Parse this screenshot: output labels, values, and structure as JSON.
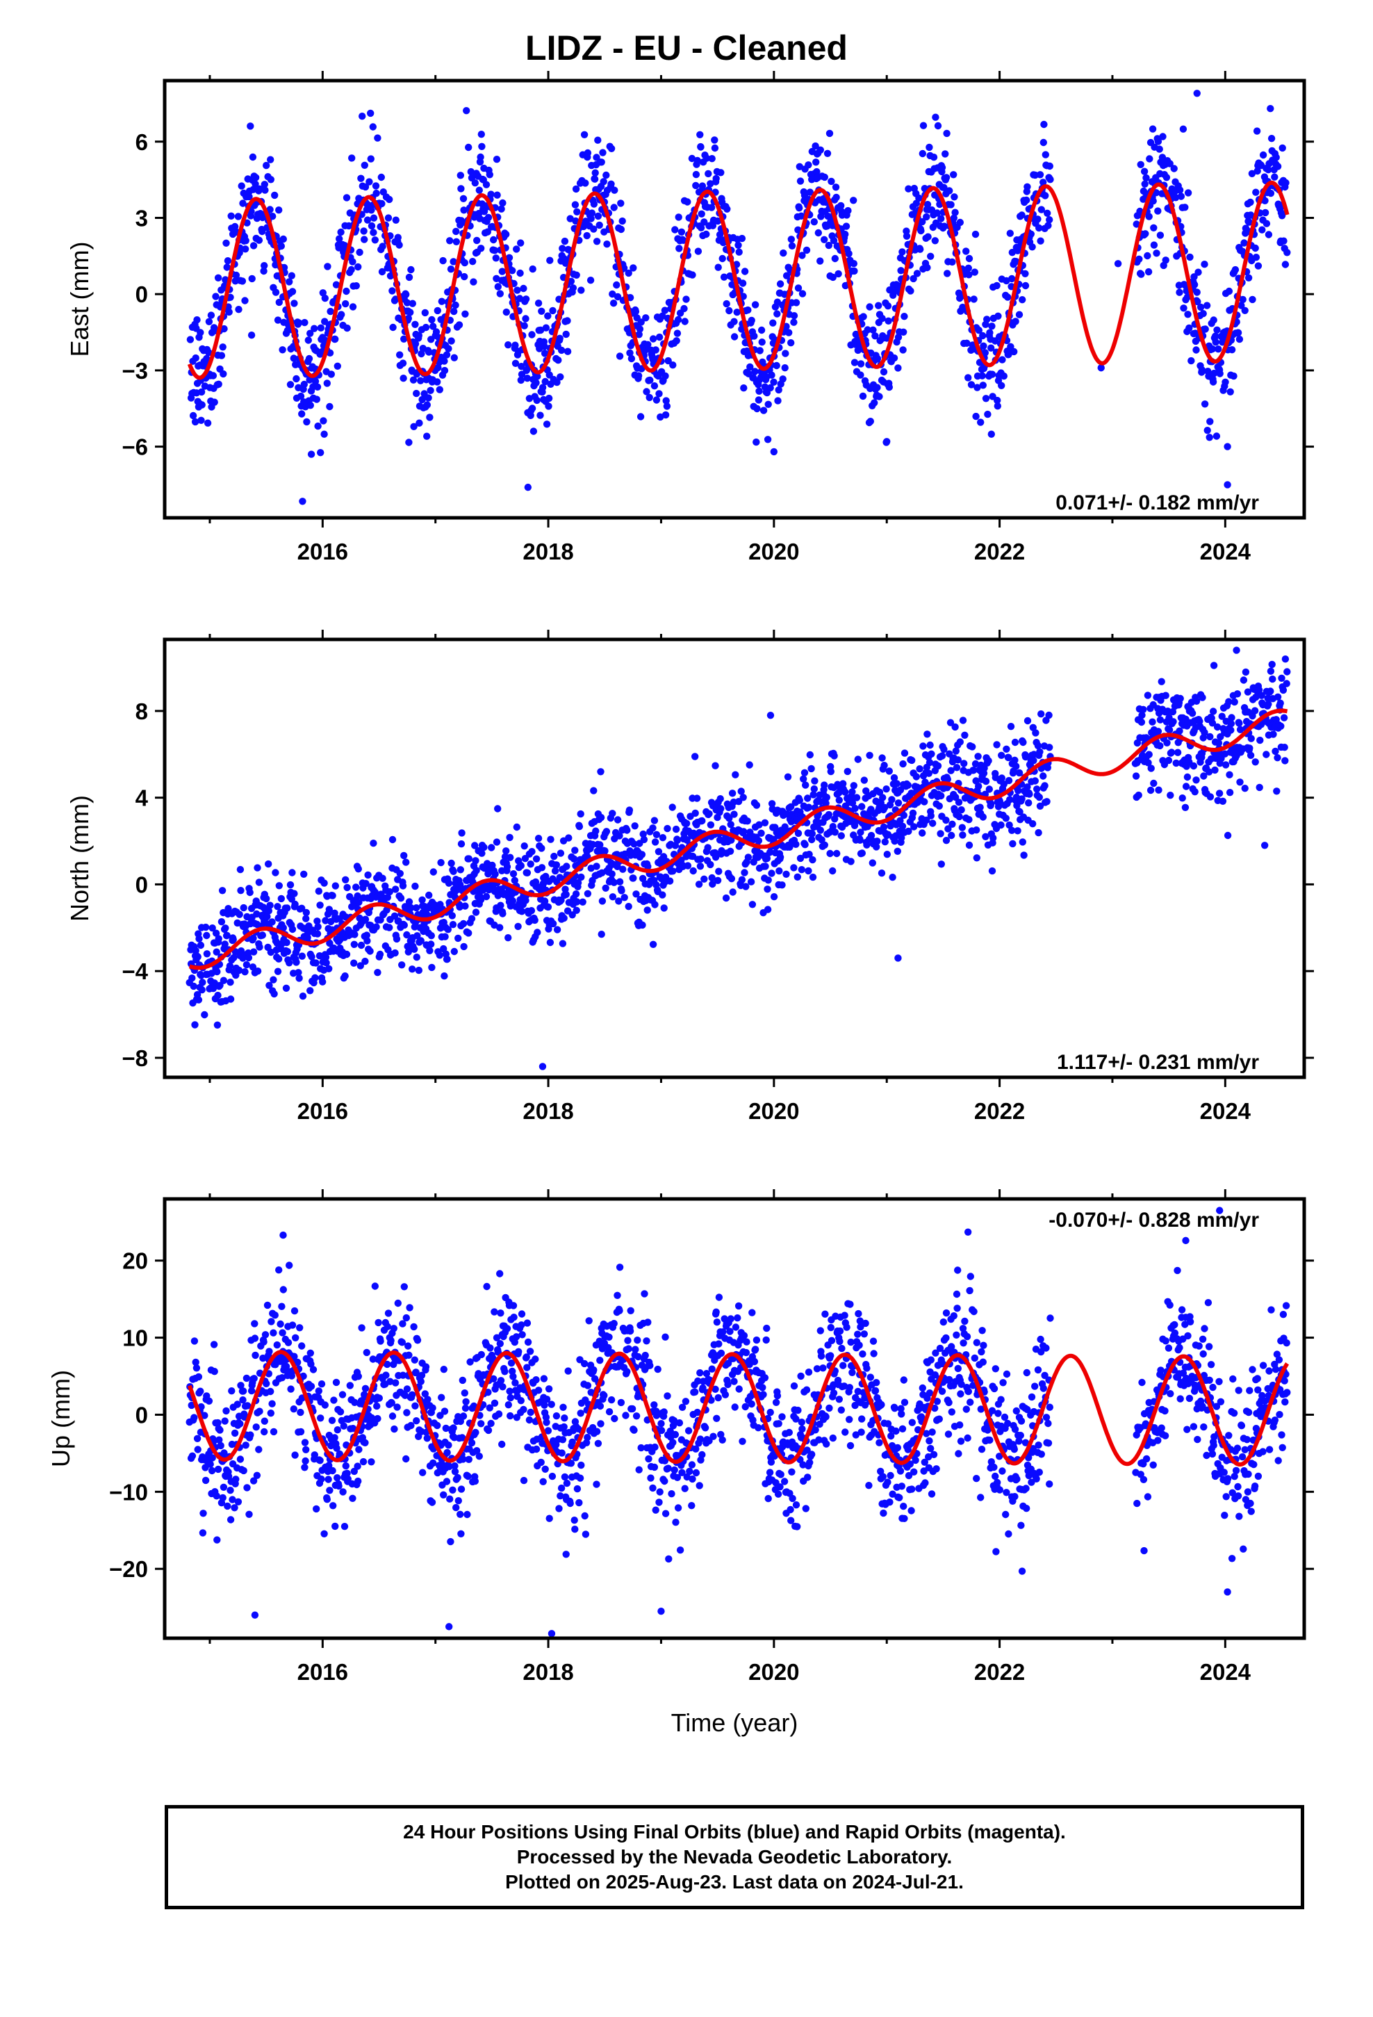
{
  "title": "LIDZ  - EU - Cleaned",
  "footer": {
    "line1": "24 Hour Positions Using Final Orbits (blue) and Rapid Orbits (magenta).",
    "line2": "Processed by the Nevada Geodetic Laboratory.",
    "line3": "Plotted on 2025-Aug-23. Last data on 2024-Jul-21."
  },
  "colors": {
    "data": "#0a0aff",
    "fit": "#ee0000",
    "frame": "#000000"
  },
  "chart_data": [
    {
      "type": "scatter",
      "component": "east",
      "ylabel": "East (mm)",
      "xlabel": "",
      "xlim": [
        2014.6,
        2024.7
      ],
      "ylim": [
        -8.8,
        8.4
      ],
      "xticks": [
        2016,
        2018,
        2020,
        2022,
        2024
      ],
      "yticks": [
        -6,
        -3,
        0,
        3,
        6
      ],
      "rate_text": "0.071+/- 0.182 mm/yr",
      "rate_position": "bottom-right",
      "series": [
        {
          "kind": "scatter",
          "data_range": [
            2014.82,
            2024.55
          ],
          "gaps": [
            [
              2022.45,
              2023.2
            ]
          ],
          "noise_mm": 1.3
        },
        {
          "kind": "line",
          "range": [
            2014.82,
            2024.55
          ],
          "model": {
            "trend_mm_per_yr": 0.071,
            "offset_mm": 0.5,
            "annual_amp_mm": 3.5,
            "annual_peak_year_fraction": 0.41
          }
        }
      ],
      "outliers": [
        [
          2017.82,
          -7.6
        ],
        [
          2015.9,
          -6.3
        ],
        [
          2024.02,
          -7.5
        ],
        [
          2024.02,
          -6.0
        ],
        [
          2020.0,
          -6.2
        ],
        [
          2023.75,
          7.9
        ],
        [
          2024.4,
          7.3
        ],
        [
          2019.35,
          5.8
        ],
        [
          2021.0,
          -5.8
        ]
      ]
    },
    {
      "type": "scatter",
      "component": "north",
      "ylabel": "North (mm)",
      "xlabel": "",
      "xlim": [
        2014.6,
        2024.7
      ],
      "ylim": [
        -8.9,
        11.3
      ],
      "xticks": [
        2016,
        2018,
        2020,
        2022,
        2024
      ],
      "yticks": [
        -8,
        -4,
        0,
        4,
        8
      ],
      "rate_text": "1.117+/- 0.231 mm/yr",
      "rate_position": "bottom-right",
      "series": [
        {
          "kind": "scatter",
          "data_range": [
            2014.82,
            2024.55
          ],
          "gaps": [
            [
              2022.45,
              2023.2
            ]
          ],
          "noise_mm": 1.2
        },
        {
          "kind": "line",
          "range": [
            2014.82,
            2024.55
          ],
          "model": {
            "trend_mm_per_yr": 1.117,
            "offset_mm": 1.3,
            "annual_amp_mm": 0.6,
            "annual_peak_year_fraction": 0.45
          }
        }
      ],
      "outliers": [
        [
          2017.95,
          -8.4
        ],
        [
          2016.45,
          1.9
        ],
        [
          2019.97,
          7.8
        ],
        [
          2023.9,
          10.1
        ],
        [
          2024.1,
          10.8
        ],
        [
          2024.35,
          1.8
        ],
        [
          2021.1,
          -3.4
        ],
        [
          2019.3,
          5.9
        ]
      ]
    },
    {
      "type": "scatter",
      "component": "up",
      "ylabel": "Up (mm)",
      "xlabel": "Time (year)",
      "xlim": [
        2014.6,
        2024.7
      ],
      "ylim": [
        -29,
        28
      ],
      "xticks": [
        2016,
        2018,
        2020,
        2022,
        2024
      ],
      "yticks": [
        -20,
        -10,
        0,
        10,
        20
      ],
      "rate_text": "-0.070+/- 0.828 mm/yr",
      "rate_position": "top-right",
      "series": [
        {
          "kind": "scatter",
          "data_range": [
            2014.82,
            2024.55
          ],
          "gaps": [
            [
              2022.45,
              2023.2
            ]
          ],
          "noise_mm": 4.6
        },
        {
          "kind": "line",
          "range": [
            2014.82,
            2024.55
          ],
          "model": {
            "trend_mm_per_yr": -0.07,
            "offset_mm": 0.9,
            "annual_amp_mm": 7.0,
            "annual_peak_year_fraction": 0.63
          }
        }
      ],
      "outliers": [
        [
          2015.4,
          -26
        ],
        [
          2017.12,
          -27.5
        ],
        [
          2018.03,
          -28.4
        ],
        [
          2015.65,
          23.3
        ],
        [
          2021.72,
          23.7
        ],
        [
          2023.65,
          22.6
        ],
        [
          2023.95,
          26.5
        ],
        [
          2019.0,
          -25.5
        ],
        [
          2022.2,
          -20.3
        ],
        [
          2024.02,
          -23
        ]
      ]
    }
  ]
}
